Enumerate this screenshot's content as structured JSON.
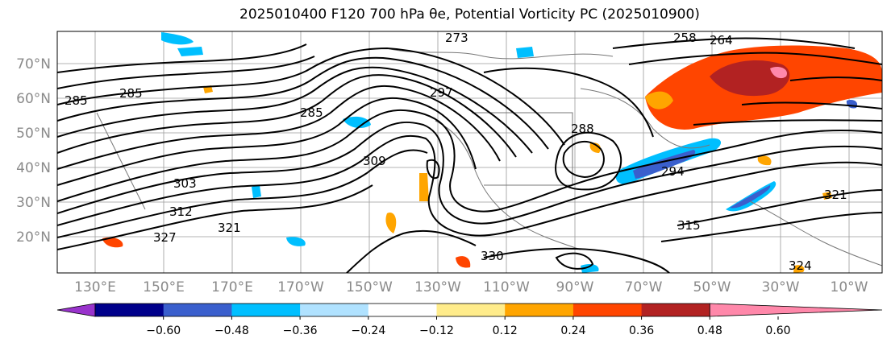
{
  "title": "2025010400 F120 700 hPa θe, Potential Vorticity PC (2025010900)",
  "lat_labels": [
    "70°N",
    "60°N",
    "50°N",
    "40°N",
    "30°N",
    "20°N"
  ],
  "lon_labels": [
    "130°E",
    "150°E",
    "170°E",
    "170°W",
    "150°W",
    "130°W",
    "110°W",
    "90°W",
    "70°W",
    "50°W",
    "30°W",
    "10°W"
  ],
  "contour_labels": [
    "285",
    "285",
    "285",
    "297",
    "303",
    "312",
    "321",
    "327",
    "330",
    "324",
    "309",
    "294",
    "288",
    "264",
    "258",
    "315",
    "321",
    "273"
  ],
  "colorbar": {
    "ticks": [
      "−0.60",
      "−0.48",
      "−0.36",
      "−0.24",
      "−0.12",
      "0.12",
      "0.24",
      "0.36",
      "0.48",
      "0.60"
    ],
    "colors": [
      "#9933cc",
      "#00008b",
      "#3a5fcd",
      "#00bfff",
      "#b0e2ff",
      "#ffffff",
      "#ffec8b",
      "#ffa500",
      "#ff4500",
      "#b22222",
      "#ff88aa"
    ]
  }
}
